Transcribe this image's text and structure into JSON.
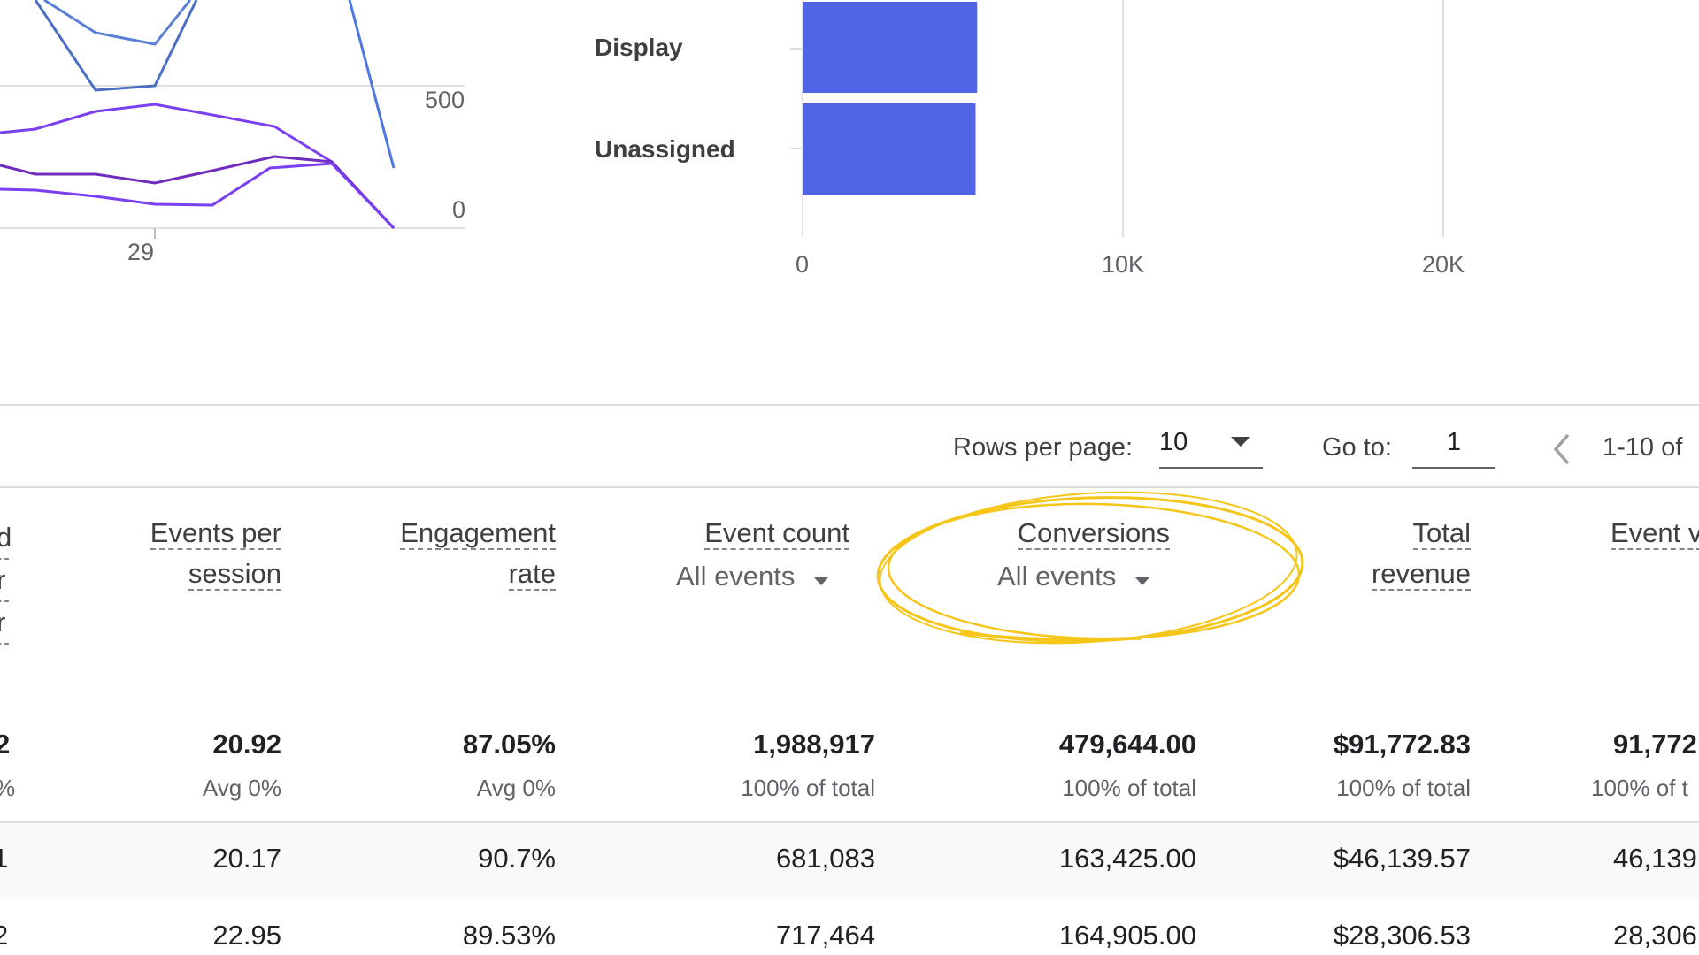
{
  "line_chart": {
    "y_ticks": [
      "500",
      "0"
    ],
    "x_ticks": [
      "29"
    ]
  },
  "chart_data": {
    "type": "bar",
    "orientation": "horizontal",
    "categories": [
      "Display",
      "Unassigned"
    ],
    "values": [
      5450,
      5400
    ],
    "x_ticks": [
      "0",
      "10K",
      "20K"
    ],
    "xlim": [
      0,
      25000
    ],
    "bar_color": "#5065e6"
  },
  "pagination": {
    "rows_label": "Rows per page:",
    "rows_value": "10",
    "goto_label": "Go to:",
    "goto_value": "1",
    "range_text": "1-10 of"
  },
  "table": {
    "columns": [
      {
        "line1": "Events per",
        "line2": "session"
      },
      {
        "line1": "Engagement",
        "line2": "rate"
      },
      {
        "line1": "Event count",
        "dropdown": "All events"
      },
      {
        "line1": "Conversions",
        "dropdown": "All events"
      },
      {
        "line1": "Total",
        "line2": "revenue"
      },
      {
        "line1": "Event v"
      }
    ],
    "partial_left_header": [
      "d",
      "r",
      "r"
    ],
    "totals": {
      "partial": "2",
      "partial_sub": "%",
      "values": [
        "20.92",
        "87.05%",
        "1,988,917",
        "479,644.00",
        "$91,772.83",
        "91,772"
      ],
      "subs": [
        "Avg 0%",
        "Avg 0%",
        "100% of total",
        "100% of total",
        "100% of total",
        "100% of t"
      ]
    },
    "rows": [
      {
        "partial": "1",
        "values": [
          "20.17",
          "90.7%",
          "681,083",
          "163,425.00",
          "$46,139.57",
          "46,139"
        ]
      },
      {
        "partial": "2",
        "values": [
          "22.95",
          "89.53%",
          "717,464",
          "164,905.00",
          "$28,306.53",
          "28,306"
        ]
      }
    ]
  },
  "colors": {
    "accent": "#5065e6",
    "annotation": "#f5c518",
    "line_dark": "#6a1b9a",
    "line_purple": "#7b3ff2",
    "line_blue": "#4a72d8"
  }
}
